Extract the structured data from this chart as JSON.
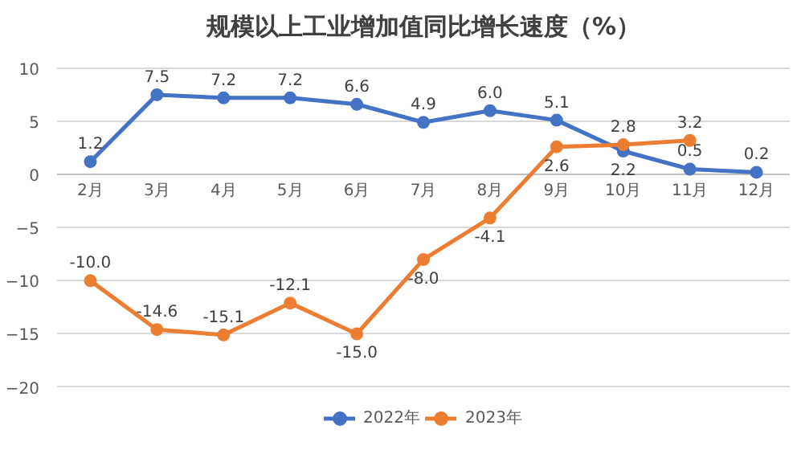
{
  "chart_data": {
    "type": "line",
    "title": "规模以上工业增加值同比增长速度（%）",
    "categories": [
      "2月",
      "3月",
      "4月",
      "5月",
      "6月",
      "7月",
      "8月",
      "9月",
      "10月",
      "11月",
      "12月"
    ],
    "series": [
      {
        "name": "2022年",
        "color": "#4472c4",
        "values": [
          1.2,
          7.5,
          7.2,
          7.2,
          6.6,
          4.9,
          6.0,
          5.1,
          2.2,
          0.5,
          0.2
        ],
        "value_labels": [
          "1.2",
          "7.5",
          "7.2",
          "7.2",
          "6.6",
          "4.9",
          "6.0",
          "5.1",
          "2.2",
          "0.5",
          "0.2"
        ]
      },
      {
        "name": "2023年",
        "color": "#ed7d31",
        "values": [
          -10.0,
          -14.6,
          -15.1,
          -12.1,
          -15.0,
          -8.0,
          -4.1,
          2.6,
          2.8,
          3.2,
          null
        ],
        "value_labels": [
          "-10.0",
          "-14.6",
          "-15.1",
          "-12.1",
          "-15.0",
          "-8.0",
          "-4.1",
          "2.6",
          "2.8",
          "3.2",
          null
        ]
      }
    ],
    "ylim": [
      -20,
      10
    ],
    "yticks": [
      -20,
      -15,
      -10,
      -5,
      0,
      5,
      10
    ],
    "grid": "y",
    "legend": "bottom",
    "marker": "circle",
    "line_style": "solid"
  }
}
